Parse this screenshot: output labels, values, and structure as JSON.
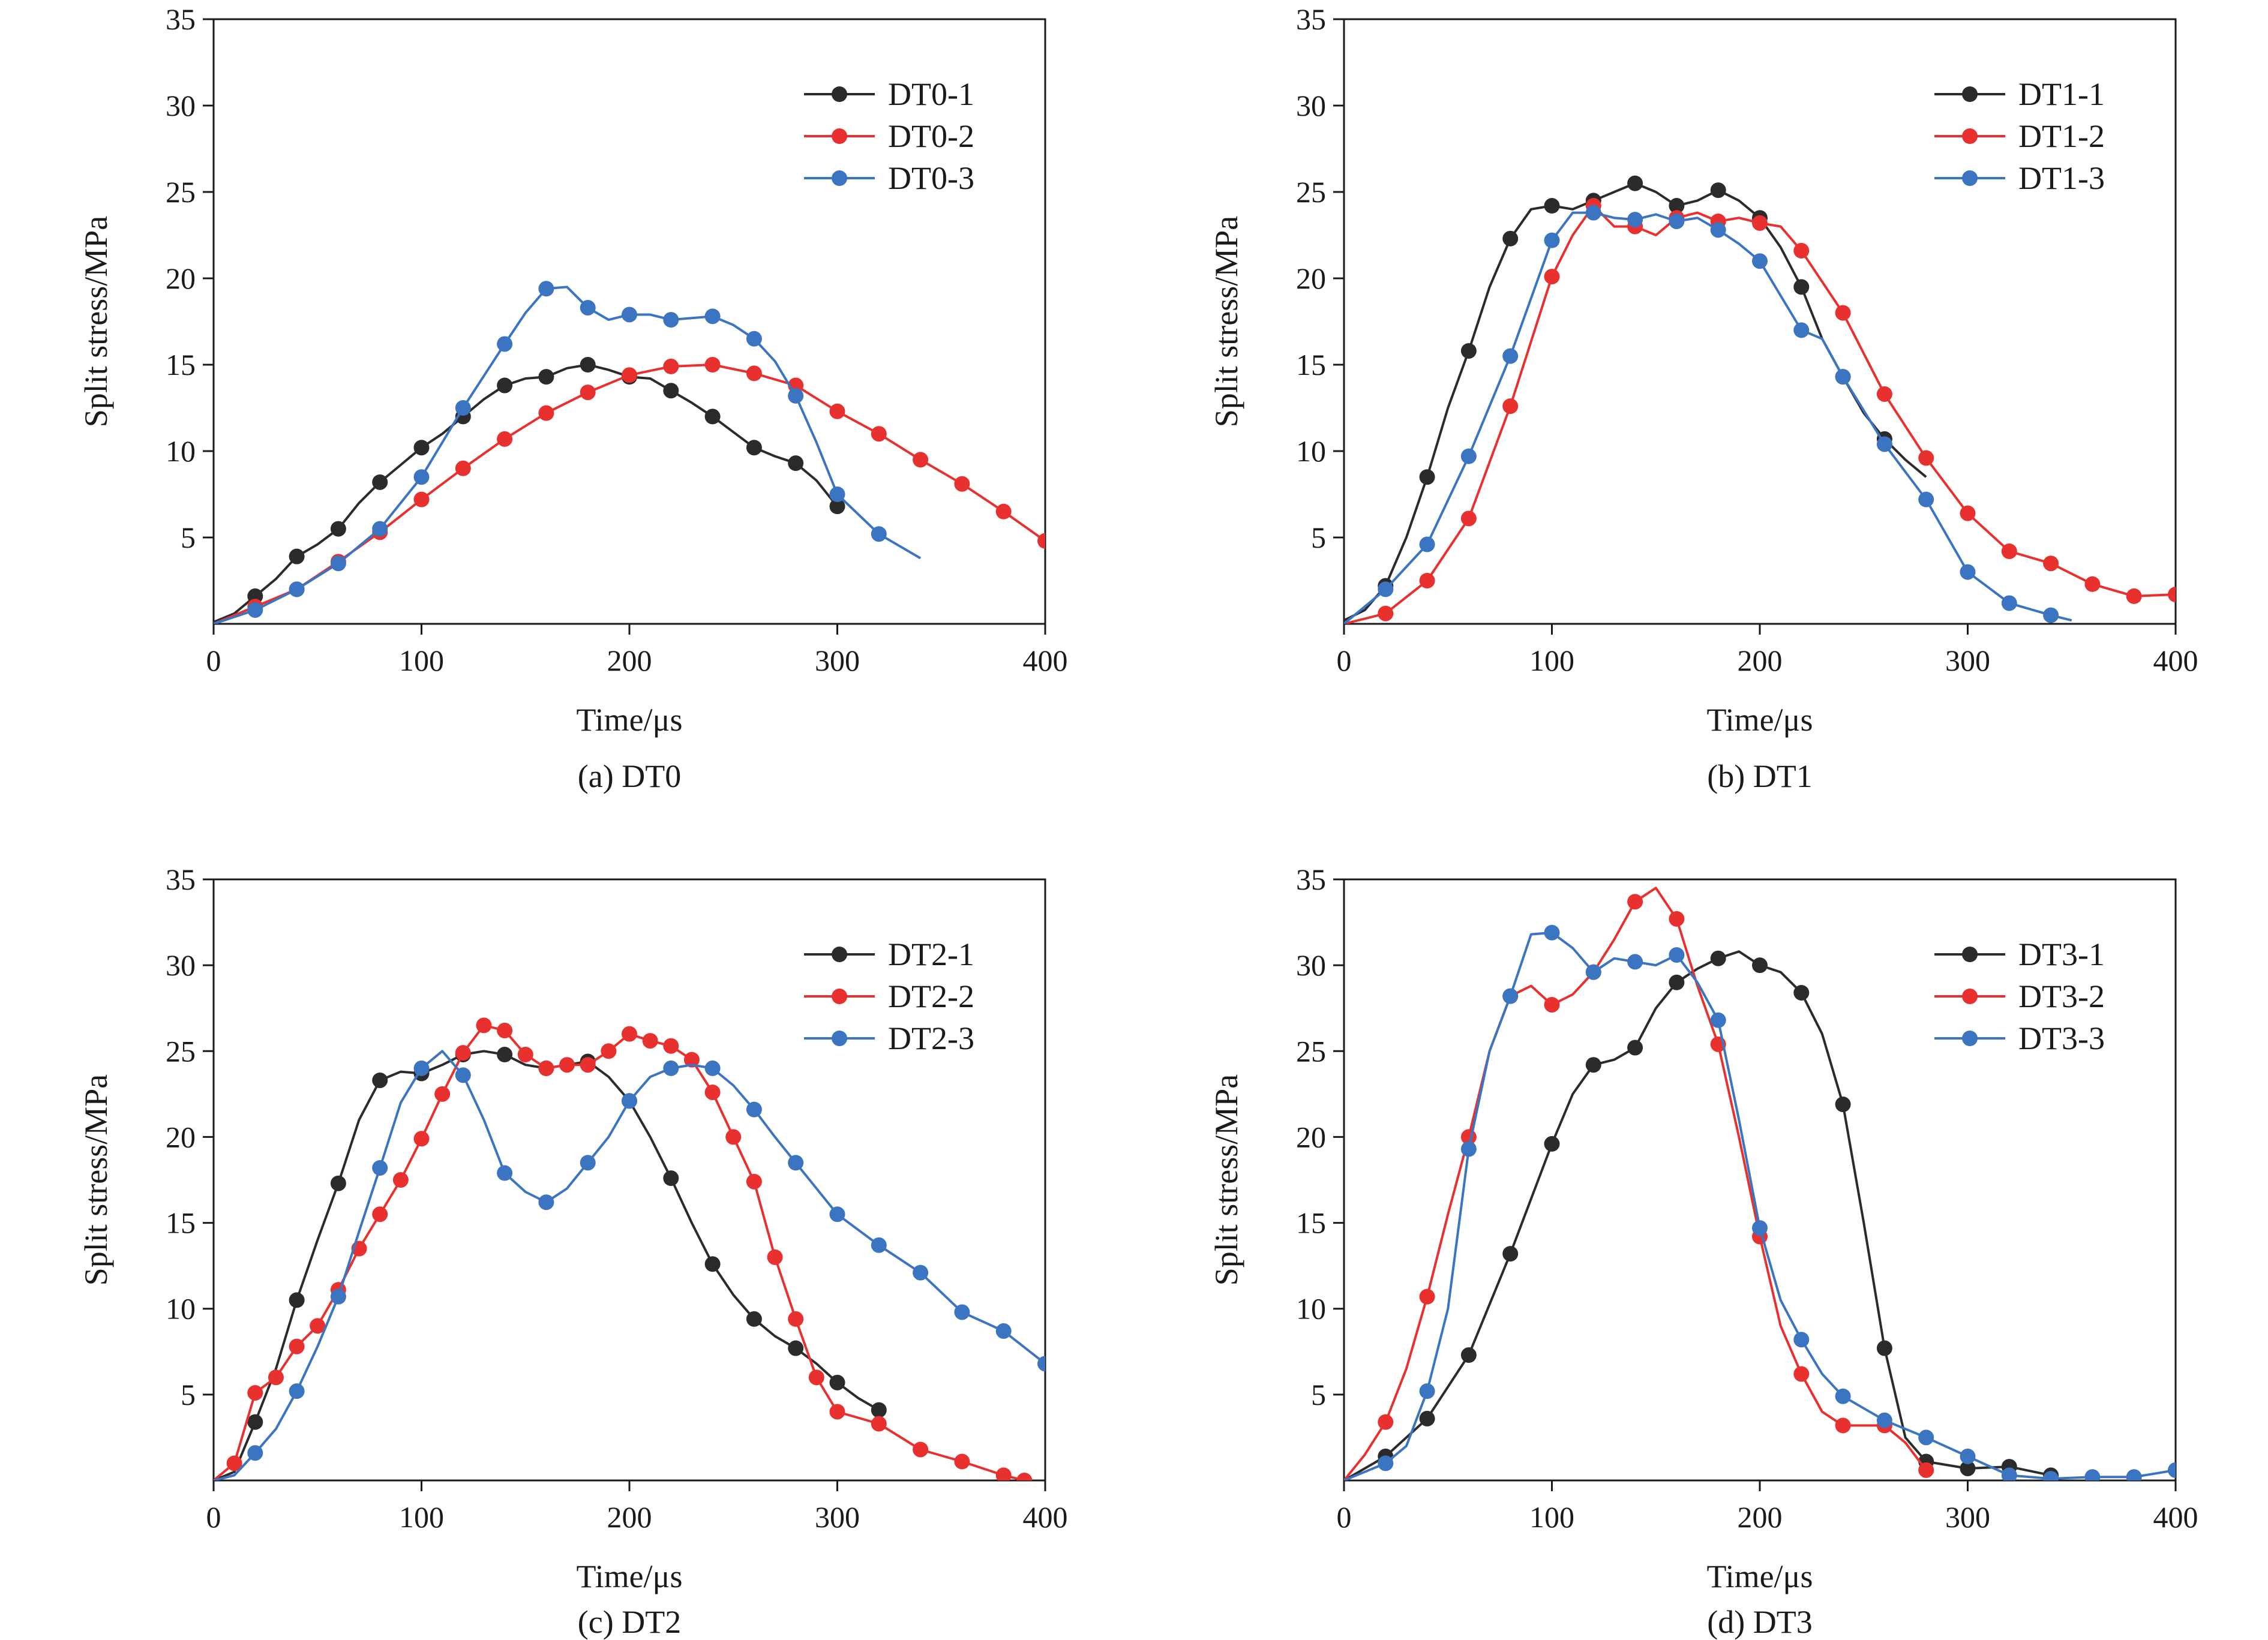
{
  "colors": {
    "series1": "#2b2b2b",
    "series2": "#e8312f",
    "series3": "#3b74c0",
    "axis": "#1a1a1a",
    "background": "#ffffff"
  },
  "chart_data": [
    {
      "type": "line",
      "caption": "(a) DT0",
      "xlabel": "Time/μs",
      "ylabel": "Split stress/MPa",
      "xlim": [
        0,
        400
      ],
      "ylim": [
        0,
        35
      ],
      "xticks": [
        "0",
        "100",
        "200",
        "300",
        "400"
      ],
      "yticks": [
        "5",
        "10",
        "15",
        "20",
        "25",
        "30",
        "35"
      ],
      "legend_position": "top-right",
      "grid": false,
      "series": [
        {
          "name": "DT0-1",
          "x": [
            0,
            10,
            20,
            30,
            40,
            50,
            60,
            70,
            80,
            90,
            100,
            110,
            120,
            130,
            140,
            150,
            160,
            170,
            180,
            190,
            200,
            210,
            220,
            230,
            240,
            250,
            260,
            270,
            280,
            290,
            300
          ],
          "y": [
            0.1,
            0.6,
            1.6,
            2.6,
            3.9,
            4.6,
            5.5,
            7.0,
            8.2,
            9.2,
            10.2,
            11.0,
            12.0,
            13.0,
            13.8,
            14.2,
            14.3,
            14.8,
            15.0,
            14.7,
            14.3,
            14.2,
            13.5,
            12.8,
            12.0,
            11.1,
            10.2,
            9.7,
            9.3,
            8.3,
            6.8
          ],
          "marker_x": [
            20,
            40,
            60,
            80,
            100,
            120,
            140,
            160,
            180,
            200,
            220,
            240,
            260,
            280,
            300
          ]
        },
        {
          "name": "DT0-2",
          "x": [
            0,
            20,
            40,
            60,
            80,
            100,
            120,
            140,
            160,
            180,
            200,
            220,
            240,
            260,
            280,
            300,
            320,
            340,
            360,
            380,
            400
          ],
          "y": [
            0,
            1.0,
            2.0,
            3.6,
            5.3,
            7.2,
            9.0,
            10.7,
            12.2,
            13.4,
            14.4,
            14.9,
            15.0,
            14.5,
            13.8,
            12.3,
            11.0,
            9.5,
            8.1,
            6.5,
            4.8
          ],
          "marker_x": [
            20,
            40,
            60,
            80,
            100,
            120,
            140,
            160,
            180,
            200,
            220,
            240,
            260,
            280,
            300,
            320,
            340,
            360,
            380,
            400
          ]
        },
        {
          "name": "DT0-3",
          "x": [
            0,
            20,
            40,
            60,
            80,
            100,
            120,
            140,
            150,
            160,
            170,
            180,
            190,
            200,
            210,
            220,
            230,
            240,
            250,
            260,
            270,
            280,
            290,
            300,
            320,
            340
          ],
          "y": [
            0,
            0.8,
            2.0,
            3.5,
            5.5,
            8.5,
            12.5,
            16.2,
            18.0,
            19.4,
            19.5,
            18.3,
            17.6,
            17.9,
            17.9,
            17.6,
            17.7,
            17.8,
            17.3,
            16.5,
            15.2,
            13.2,
            10.5,
            7.5,
            5.2,
            3.8
          ],
          "marker_x": [
            20,
            40,
            60,
            80,
            100,
            120,
            140,
            160,
            180,
            200,
            220,
            240,
            260,
            280,
            300,
            320
          ]
        }
      ]
    },
    {
      "type": "line",
      "caption": "(b) DT1",
      "xlabel": "Time/μs",
      "ylabel": "Split stress/MPa",
      "xlim": [
        0,
        400
      ],
      "ylim": [
        0,
        35
      ],
      "xticks": [
        "0",
        "100",
        "200",
        "300",
        "400"
      ],
      "yticks": [
        "5",
        "10",
        "15",
        "20",
        "25",
        "30",
        "35"
      ],
      "legend_position": "top-right",
      "grid": false,
      "series": [
        {
          "name": "DT1-1",
          "x": [
            0,
            10,
            20,
            30,
            40,
            50,
            60,
            70,
            80,
            90,
            100,
            110,
            120,
            130,
            140,
            150,
            160,
            170,
            180,
            190,
            200,
            210,
            220,
            230,
            240,
            250,
            260,
            270,
            280
          ],
          "y": [
            0.2,
            0.8,
            2.2,
            5.0,
            8.5,
            12.5,
            15.8,
            19.5,
            22.3,
            24.0,
            24.2,
            24.0,
            24.5,
            25.0,
            25.5,
            25.0,
            24.2,
            24.5,
            25.1,
            24.5,
            23.5,
            21.8,
            19.5,
            16.5,
            14.3,
            12.2,
            10.7,
            9.5,
            8.5
          ],
          "marker_x": [
            20,
            40,
            60,
            80,
            100,
            120,
            140,
            160,
            180,
            200,
            220,
            240,
            260
          ]
        },
        {
          "name": "DT1-2",
          "x": [
            0,
            20,
            40,
            60,
            80,
            100,
            110,
            120,
            130,
            140,
            150,
            160,
            170,
            180,
            190,
            200,
            210,
            220,
            240,
            260,
            280,
            300,
            320,
            340,
            360,
            380,
            400
          ],
          "y": [
            0,
            0.6,
            2.5,
            6.1,
            12.6,
            20.1,
            22.5,
            24.2,
            23.0,
            23.0,
            22.5,
            23.5,
            23.8,
            23.3,
            23.5,
            23.2,
            23.0,
            21.6,
            18.0,
            13.3,
            9.6,
            6.4,
            4.2,
            3.5,
            2.3,
            1.6,
            1.7
          ],
          "marker_x": [
            20,
            40,
            60,
            80,
            100,
            120,
            140,
            160,
            180,
            200,
            220,
            240,
            260,
            280,
            300,
            320,
            340,
            360,
            380,
            400
          ]
        },
        {
          "name": "DT1-3",
          "x": [
            0,
            20,
            40,
            60,
            80,
            100,
            110,
            120,
            130,
            140,
            150,
            160,
            170,
            180,
            190,
            200,
            210,
            220,
            230,
            240,
            260,
            280,
            300,
            320,
            340,
            350
          ],
          "y": [
            0,
            2.0,
            4.6,
            9.7,
            15.5,
            22.2,
            23.8,
            23.8,
            23.5,
            23.4,
            23.7,
            23.3,
            23.5,
            22.8,
            22.0,
            21.0,
            19.0,
            17.0,
            16.5,
            14.3,
            10.4,
            7.2,
            3.0,
            1.2,
            0.5,
            0.2
          ],
          "marker_x": [
            20,
            40,
            60,
            80,
            100,
            120,
            140,
            160,
            180,
            200,
            220,
            240,
            260,
            280,
            300,
            320,
            340
          ]
        }
      ]
    },
    {
      "type": "line",
      "caption": "(c) DT2",
      "xlabel": "Time/μs",
      "ylabel": "Split stress/MPa",
      "xlim": [
        0,
        400
      ],
      "ylim": [
        0,
        35
      ],
      "xticks": [
        "0",
        "100",
        "200",
        "300",
        "400"
      ],
      "yticks": [
        "5",
        "10",
        "15",
        "20",
        "25",
        "30",
        "35"
      ],
      "legend_position": "top-right",
      "grid": false,
      "series": [
        {
          "name": "DT2-1",
          "x": [
            0,
            10,
            20,
            30,
            40,
            50,
            60,
            70,
            80,
            90,
            100,
            110,
            120,
            130,
            140,
            150,
            160,
            170,
            180,
            190,
            200,
            210,
            220,
            230,
            240,
            250,
            260,
            270,
            280,
            290,
            300,
            310,
            320
          ],
          "y": [
            0,
            0.5,
            3.4,
            6.5,
            10.5,
            14.0,
            17.3,
            21.0,
            23.3,
            23.8,
            23.7,
            24.2,
            24.8,
            25.0,
            24.8,
            24.2,
            24.0,
            24.2,
            24.4,
            23.5,
            22.1,
            20.0,
            17.6,
            15.0,
            12.6,
            10.8,
            9.4,
            8.4,
            7.7,
            6.8,
            5.7,
            4.8,
            4.1
          ],
          "marker_x": [
            20,
            40,
            60,
            80,
            100,
            120,
            140,
            160,
            180,
            200,
            220,
            240,
            260,
            280,
            300,
            320
          ]
        },
        {
          "name": "DT2-2",
          "x": [
            0,
            10,
            20,
            30,
            40,
            50,
            60,
            70,
            80,
            90,
            100,
            110,
            120,
            130,
            140,
            150,
            160,
            170,
            180,
            190,
            200,
            210,
            220,
            230,
            240,
            250,
            260,
            270,
            280,
            290,
            300,
            320,
            340,
            360,
            380,
            390
          ],
          "y": [
            0,
            1.0,
            5.1,
            6.0,
            7.8,
            9.0,
            11.1,
            13.5,
            15.5,
            17.5,
            19.9,
            22.5,
            24.9,
            26.5,
            26.2,
            24.8,
            24.0,
            24.2,
            24.2,
            25.0,
            26.0,
            25.6,
            25.3,
            24.5,
            22.6,
            20.0,
            17.4,
            13.0,
            9.4,
            6.0,
            4.0,
            3.3,
            1.8,
            1.1,
            0.3,
            0
          ]
        },
        {
          "name": "DT2-3",
          "x": [
            0,
            10,
            20,
            30,
            40,
            50,
            60,
            70,
            80,
            90,
            100,
            110,
            120,
            130,
            140,
            150,
            160,
            170,
            180,
            190,
            200,
            210,
            220,
            230,
            240,
            250,
            260,
            270,
            280,
            290,
            300,
            320,
            340,
            360,
            380,
            400
          ],
          "y": [
            0,
            0.3,
            1.6,
            3.0,
            5.2,
            7.8,
            10.7,
            14.5,
            18.2,
            22.0,
            24.0,
            25.0,
            23.6,
            21.0,
            17.9,
            16.8,
            16.2,
            17.0,
            18.5,
            20.0,
            22.1,
            23.5,
            24.0,
            24.2,
            24.0,
            23.0,
            21.6,
            20.0,
            18.5,
            17.0,
            15.5,
            13.7,
            12.1,
            9.8,
            8.7,
            6.8
          ],
          "marker_x": [
            20,
            40,
            60,
            80,
            100,
            120,
            140,
            160,
            180,
            200,
            220,
            240,
            260,
            280,
            300,
            320,
            340,
            360,
            380,
            400
          ]
        }
      ]
    },
    {
      "type": "line",
      "caption": "(d) DT3",
      "xlabel": "Time/μs",
      "ylabel": "Split stress/MPa",
      "xlim": [
        0,
        400
      ],
      "ylim": [
        0,
        35
      ],
      "xticks": [
        "0",
        "100",
        "200",
        "300",
        "400"
      ],
      "yticks": [
        "5",
        "10",
        "15",
        "20",
        "25",
        "30",
        "35"
      ],
      "legend_position": "top-right",
      "grid": false,
      "series": [
        {
          "name": "DT3-1",
          "x": [
            0,
            20,
            40,
            60,
            80,
            100,
            110,
            120,
            130,
            140,
            150,
            160,
            170,
            180,
            190,
            200,
            210,
            220,
            230,
            240,
            250,
            260,
            270,
            280,
            300,
            320,
            340
          ],
          "y": [
            0,
            1.4,
            3.6,
            7.3,
            13.2,
            19.6,
            22.5,
            24.2,
            24.5,
            25.2,
            27.5,
            29.0,
            29.8,
            30.4,
            30.8,
            30.0,
            29.6,
            28.4,
            26.0,
            21.9,
            15.0,
            7.7,
            2.5,
            1.1,
            0.7,
            0.8,
            0.3
          ],
          "marker_x": [
            20,
            40,
            60,
            80,
            100,
            120,
            140,
            160,
            180,
            200,
            220,
            240,
            260,
            280,
            300,
            320,
            340
          ]
        },
        {
          "name": "DT3-2",
          "x": [
            0,
            10,
            20,
            30,
            40,
            50,
            60,
            70,
            80,
            90,
            100,
            110,
            120,
            130,
            140,
            150,
            160,
            170,
            180,
            190,
            200,
            210,
            220,
            230,
            240,
            250,
            260,
            270,
            280
          ],
          "y": [
            0,
            1.5,
            3.4,
            6.5,
            10.7,
            15.5,
            20.0,
            25.0,
            28.2,
            28.8,
            27.7,
            28.3,
            29.6,
            31.5,
            33.7,
            34.5,
            32.7,
            28.8,
            25.4,
            20.0,
            14.2,
            9.0,
            6.2,
            4.0,
            3.2,
            3.2,
            3.2,
            2.2,
            0.6
          ],
          "marker_x": [
            20,
            40,
            60,
            80,
            100,
            120,
            140,
            160,
            180,
            200,
            220,
            240,
            260,
            280
          ]
        },
        {
          "name": "DT3-3",
          "x": [
            0,
            10,
            20,
            30,
            40,
            50,
            60,
            70,
            80,
            90,
            100,
            110,
            120,
            130,
            140,
            150,
            160,
            170,
            180,
            190,
            200,
            210,
            220,
            230,
            240,
            260,
            280,
            300,
            320,
            340,
            360,
            380,
            400
          ],
          "y": [
            0,
            0.5,
            1.0,
            2.0,
            5.2,
            10.0,
            19.3,
            25.0,
            28.2,
            31.8,
            31.9,
            31.0,
            29.6,
            30.4,
            30.2,
            30.0,
            30.6,
            29.0,
            26.8,
            21.0,
            14.7,
            10.5,
            8.2,
            6.2,
            4.9,
            3.5,
            2.5,
            1.4,
            0.3,
            0.1,
            0.2,
            0.2,
            0.6
          ],
          "marker_x": [
            20,
            40,
            60,
            80,
            100,
            120,
            140,
            160,
            180,
            200,
            220,
            240,
            260,
            280,
            300,
            320,
            340,
            360,
            380,
            400
          ]
        }
      ]
    }
  ]
}
